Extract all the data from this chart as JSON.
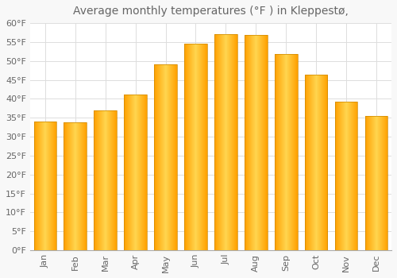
{
  "title": "Average monthly temperatures (°F ) in Kleppestø,",
  "months": [
    "Jan",
    "Feb",
    "Mar",
    "Apr",
    "May",
    "Jun",
    "Jul",
    "Aug",
    "Sep",
    "Oct",
    "Nov",
    "Dec"
  ],
  "values": [
    34.0,
    33.8,
    37.0,
    41.2,
    49.1,
    54.5,
    57.0,
    56.8,
    51.8,
    46.4,
    39.2,
    35.4
  ],
  "bar_color_center": "#FFD54F",
  "bar_color_edge": "#FFA000",
  "background_color": "#F8F8F8",
  "plot_bg_color": "#FFFFFF",
  "grid_color": "#DDDDDD",
  "text_color": "#666666",
  "axis_color": "#AAAAAA",
  "ylim": [
    0,
    60
  ],
  "ytick_step": 5,
  "title_fontsize": 10,
  "tick_fontsize": 8
}
